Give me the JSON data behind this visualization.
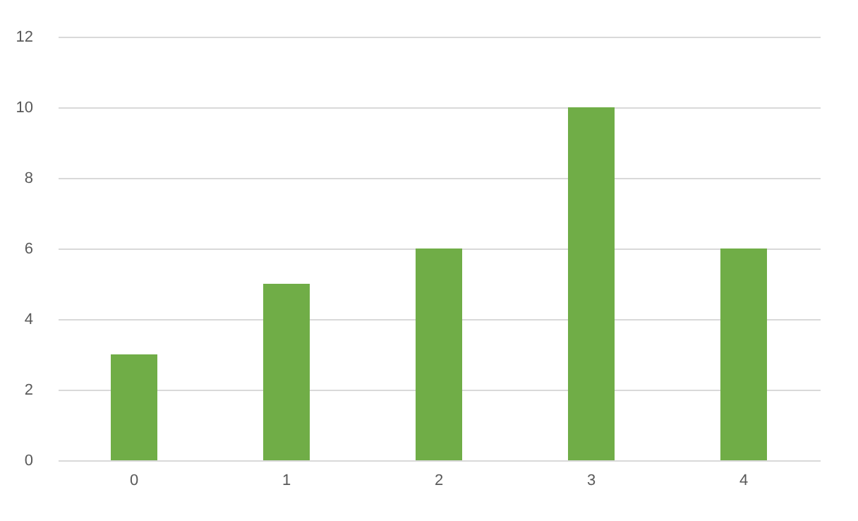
{
  "chart_data": {
    "type": "bar",
    "categories": [
      "0",
      "1",
      "2",
      "3",
      "4"
    ],
    "values": [
      3,
      5,
      6,
      10,
      6
    ],
    "color": "#70ad47",
    "ylim": [
      0,
      12
    ],
    "yticks": [
      0,
      2,
      4,
      6,
      8,
      10,
      12
    ],
    "grid": "y"
  }
}
